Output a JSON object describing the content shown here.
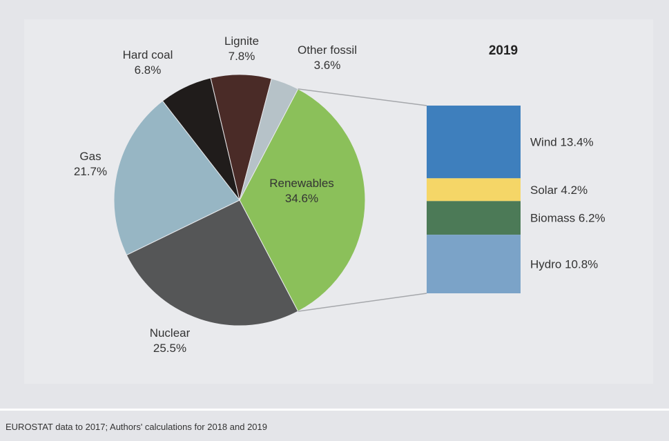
{
  "chart_data": {
    "type": "pie",
    "title": "2019",
    "slices": [
      {
        "name": "Renewables",
        "value": 34.6,
        "label": "34.6%",
        "color": "#8bc05a"
      },
      {
        "name": "Nuclear",
        "value": 25.5,
        "label": "25.5%",
        "color": "#555657"
      },
      {
        "name": "Gas",
        "value": 21.7,
        "label": "21.7%",
        "color": "#97b6c4"
      },
      {
        "name": "Hard coal",
        "value": 6.8,
        "label": "6.8%",
        "color": "#201c1b"
      },
      {
        "name": "Lignite",
        "value": 7.8,
        "label": "7.8%",
        "color": "#4a2b27"
      },
      {
        "name": "Other fossil",
        "value": 3.6,
        "label": "3.6%",
        "color": "#b6c2c8"
      }
    ],
    "breakdown": {
      "of": "Renewables",
      "type": "stacked-bar",
      "segments": [
        {
          "name": "Wind",
          "value": 13.4,
          "label": "Wind 13.4%",
          "color": "#3e7fbd"
        },
        {
          "name": "Solar",
          "value": 4.2,
          "label": "Solar 4.2%",
          "color": "#f5d667"
        },
        {
          "name": "Biomass",
          "value": 6.2,
          "label": "Biomass 6.2%",
          "color": "#4c7a57"
        },
        {
          "name": "Hydro",
          "value": 10.8,
          "label": "Hydro 10.8%",
          "color": "#7ba3c8"
        }
      ]
    }
  },
  "footer": {
    "source": "EUROSTAT data to 2017; Authors' calculations for 2018 and 2019"
  }
}
